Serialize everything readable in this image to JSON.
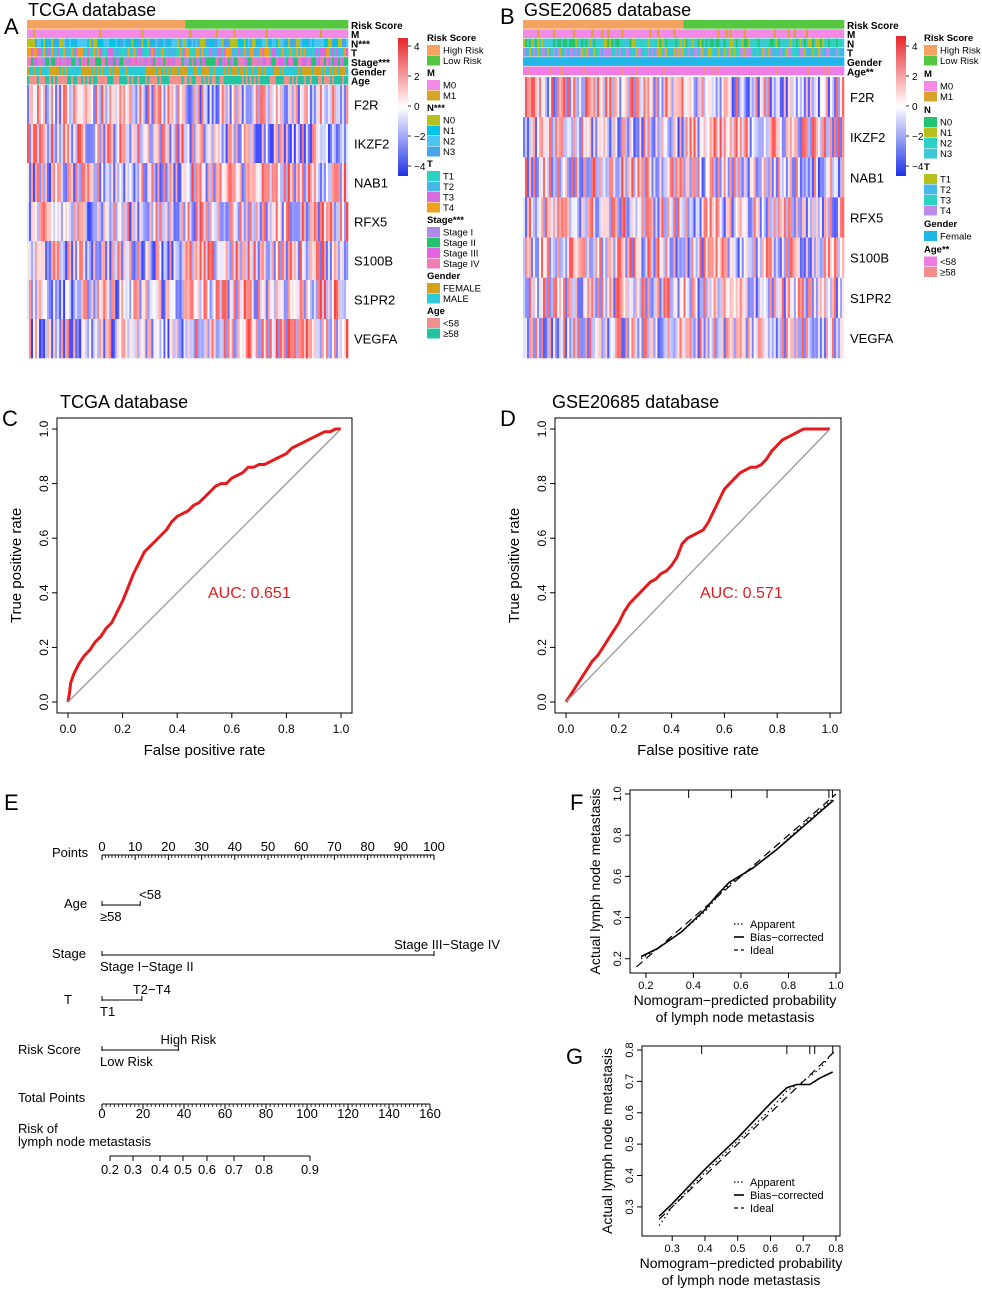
{
  "panels": {
    "A": {
      "letter": "A",
      "title": "TCGA database",
      "tracks": [
        "Risk Score",
        "M",
        "N***",
        "T",
        "Stage***",
        "Gender",
        "Age"
      ],
      "genes": [
        "F2R",
        "IKZF2",
        "NAB1",
        "RFX5",
        "S100B",
        "S1PR2",
        "VEGFA"
      ],
      "scale_ticks": [
        "4",
        "2",
        "0",
        "−2",
        "−4"
      ],
      "legend": [
        {
          "title": "Risk Score",
          "items": [
            {
              "label": "High Risk",
              "color": "#F4A261"
            },
            {
              "label": "Low Risk",
              "color": "#55C640"
            }
          ]
        },
        {
          "title": "M",
          "items": [
            {
              "label": "M0",
              "color": "#F28AE6"
            },
            {
              "label": "M1",
              "color": "#D7A32A"
            }
          ]
        },
        {
          "title": "N***",
          "items": [
            {
              "label": "N0",
              "color": "#B7BF1D"
            },
            {
              "label": "N1",
              "color": "#00C3E6"
            },
            {
              "label": "N2",
              "color": "#49C7F0"
            },
            {
              "label": "N3",
              "color": "#46A4E8"
            }
          ]
        },
        {
          "title": "T",
          "items": [
            {
              "label": "T1",
              "color": "#2CD3C4"
            },
            {
              "label": "T2",
              "color": "#45B8E8"
            },
            {
              "label": "T3",
              "color": "#D96BE0"
            },
            {
              "label": "T4",
              "color": "#F0A01E"
            }
          ]
        },
        {
          "title": "Stage***",
          "items": [
            {
              "label": "Stage I",
              "color": "#B18AE8"
            },
            {
              "label": "Stage II",
              "color": "#22C36E"
            },
            {
              "label": "Stage III",
              "color": "#E263E6"
            },
            {
              "label": "Stage IV",
              "color": "#F07CB6"
            }
          ]
        },
        {
          "title": "Gender",
          "items": [
            {
              "label": "FEMALE",
              "color": "#D4A21A"
            },
            {
              "label": "MALE",
              "color": "#2CC9D6"
            }
          ]
        },
        {
          "title": "Age",
          "items": [
            {
              "label": "<58",
              "color": "#F28F8C"
            },
            {
              "label": "≥58",
              "color": "#22C3A0"
            }
          ]
        }
      ]
    },
    "B": {
      "letter": "B",
      "title": "GSE20685 database",
      "tracks": [
        "Risk Score",
        "M",
        "N",
        "T",
        "Gender",
        "Age**"
      ],
      "genes": [
        "F2R",
        "IKZF2",
        "NAB1",
        "RFX5",
        "S100B",
        "S1PR2",
        "VEGFA"
      ],
      "scale_ticks": [
        "4",
        "2",
        "0",
        "−2",
        "−4"
      ],
      "legend": [
        {
          "title": "Risk Score",
          "items": [
            {
              "label": "High Risk",
              "color": "#F4A261"
            },
            {
              "label": "Low Risk",
              "color": "#55C640"
            }
          ]
        },
        {
          "title": "M",
          "items": [
            {
              "label": "M0",
              "color": "#F28AE6"
            },
            {
              "label": "M1",
              "color": "#D7A32A"
            }
          ]
        },
        {
          "title": "N",
          "items": [
            {
              "label": "N0",
              "color": "#22C36E"
            },
            {
              "label": "N1",
              "color": "#B7BF1D"
            },
            {
              "label": "N2",
              "color": "#2CD3C4"
            },
            {
              "label": "N3",
              "color": "#3CC8D8"
            }
          ]
        },
        {
          "title": "T",
          "items": [
            {
              "label": "T1",
              "color": "#B7BF1D"
            },
            {
              "label": "T2",
              "color": "#45B8E8"
            },
            {
              "label": "T3",
              "color": "#2CD3C4"
            },
            {
              "label": "T4",
              "color": "#C08AE8"
            }
          ]
        },
        {
          "title": "Gender",
          "items": [
            {
              "label": "Female",
              "color": "#22B6E8"
            }
          ]
        },
        {
          "title": "Age**",
          "items": [
            {
              "label": "<58",
              "color": "#F07CE6"
            },
            {
              "label": "≥58",
              "color": "#F28F8C"
            }
          ]
        }
      ]
    },
    "C": {
      "letter": "C",
      "title": "TCGA database",
      "auc_label": "AUC: 0.651"
    },
    "D": {
      "letter": "D",
      "title": "GSE20685 database",
      "auc_label": "AUC: 0.571"
    },
    "E": {
      "letter": "E"
    },
    "F": {
      "letter": "F"
    },
    "G": {
      "letter": "G"
    }
  },
  "chart_data": [
    {
      "type": "line",
      "panel": "C",
      "title": "TCGA database",
      "xlabel": "False positive rate",
      "ylabel": "True positive rate",
      "xlim": [
        0,
        1
      ],
      "ylim": [
        0,
        1
      ],
      "xticks": [
        "0.0",
        "0.2",
        "0.4",
        "0.6",
        "0.8",
        "1.0"
      ],
      "yticks": [
        "0.0",
        "0.2",
        "0.4",
        "0.6",
        "0.8",
        "1.0"
      ],
      "auc": 0.651,
      "series": [
        {
          "name": "ROC",
          "color": "#e41a1c",
          "x": [
            0,
            0.005,
            0.01,
            0.02,
            0.04,
            0.06,
            0.08,
            0.1,
            0.12,
            0.14,
            0.16,
            0.18,
            0.2,
            0.22,
            0.24,
            0.26,
            0.28,
            0.3,
            0.32,
            0.34,
            0.36,
            0.38,
            0.4,
            0.42,
            0.44,
            0.46,
            0.48,
            0.5,
            0.52,
            0.54,
            0.56,
            0.58,
            0.6,
            0.62,
            0.64,
            0.66,
            0.68,
            0.7,
            0.72,
            0.74,
            0.76,
            0.78,
            0.8,
            0.82,
            0.84,
            0.86,
            0.88,
            0.9,
            0.92,
            0.94,
            0.96,
            0.98,
            1.0
          ],
          "y": [
            0,
            0.03,
            0.07,
            0.1,
            0.14,
            0.17,
            0.19,
            0.22,
            0.24,
            0.27,
            0.29,
            0.33,
            0.37,
            0.42,
            0.47,
            0.51,
            0.55,
            0.57,
            0.59,
            0.61,
            0.63,
            0.66,
            0.68,
            0.69,
            0.7,
            0.72,
            0.73,
            0.75,
            0.77,
            0.79,
            0.8,
            0.8,
            0.82,
            0.83,
            0.84,
            0.86,
            0.86,
            0.87,
            0.87,
            0.88,
            0.89,
            0.9,
            0.91,
            0.93,
            0.94,
            0.95,
            0.96,
            0.97,
            0.98,
            0.99,
            0.99,
            1.0,
            1.0
          ]
        },
        {
          "name": "Reference",
          "color": "#999999",
          "x": [
            0,
            1
          ],
          "y": [
            0,
            1
          ]
        }
      ]
    },
    {
      "type": "line",
      "panel": "D",
      "title": "GSE20685 database",
      "xlabel": "False positive rate",
      "ylabel": "True positive rate",
      "xlim": [
        0,
        1
      ],
      "ylim": [
        0,
        1
      ],
      "xticks": [
        "0.0",
        "0.2",
        "0.4",
        "0.6",
        "0.8",
        "1.0"
      ],
      "yticks": [
        "0.0",
        "0.2",
        "0.4",
        "0.6",
        "0.8",
        "1.0"
      ],
      "auc": 0.571,
      "series": [
        {
          "name": "ROC",
          "color": "#e41a1c",
          "x": [
            0,
            0.02,
            0.04,
            0.06,
            0.08,
            0.1,
            0.12,
            0.14,
            0.16,
            0.18,
            0.2,
            0.22,
            0.24,
            0.26,
            0.28,
            0.3,
            0.32,
            0.34,
            0.36,
            0.38,
            0.4,
            0.42,
            0.44,
            0.46,
            0.48,
            0.5,
            0.52,
            0.54,
            0.56,
            0.58,
            0.6,
            0.62,
            0.64,
            0.66,
            0.68,
            0.7,
            0.72,
            0.74,
            0.76,
            0.78,
            0.8,
            0.82,
            0.84,
            0.86,
            0.88,
            0.9,
            0.92,
            0.94,
            0.96,
            0.98,
            1.0
          ],
          "y": [
            0,
            0.03,
            0.06,
            0.09,
            0.12,
            0.15,
            0.17,
            0.2,
            0.23,
            0.26,
            0.29,
            0.33,
            0.36,
            0.38,
            0.4,
            0.42,
            0.44,
            0.45,
            0.47,
            0.48,
            0.5,
            0.53,
            0.58,
            0.6,
            0.61,
            0.62,
            0.63,
            0.66,
            0.7,
            0.74,
            0.78,
            0.8,
            0.82,
            0.84,
            0.85,
            0.86,
            0.86,
            0.87,
            0.89,
            0.92,
            0.94,
            0.96,
            0.97,
            0.98,
            0.99,
            1.0,
            1.0,
            1.0,
            1.0,
            1.0,
            1.0
          ]
        },
        {
          "name": "Reference",
          "color": "#999999",
          "x": [
            0,
            1
          ],
          "y": [
            0,
            1
          ]
        }
      ]
    },
    {
      "type": "nomogram",
      "panel": "E",
      "rows": [
        {
          "name": "Points",
          "axis": true,
          "ticks": [
            "0",
            "10",
            "20",
            "30",
            "40",
            "50",
            "60",
            "70",
            "80",
            "90",
            "100"
          ]
        },
        {
          "name": "Age",
          "levels": [
            {
              "label": "<58",
              "points": 11.5,
              "side": "above"
            },
            {
              "label": "≥58",
              "points": 0,
              "side": "below"
            }
          ]
        },
        {
          "name": "Stage",
          "levels": [
            {
              "label": "Stage III−Stage IV",
              "points": 100,
              "side": "above"
            },
            {
              "label": "Stage I−Stage II",
              "points": 0,
              "side": "below"
            }
          ]
        },
        {
          "name": "T",
          "levels": [
            {
              "label": "T2−T4",
              "points": 12,
              "side": "above"
            },
            {
              "label": "T1",
              "points": 0,
              "side": "below"
            }
          ]
        },
        {
          "name": "Risk Score",
          "levels": [
            {
              "label": "High Risk",
              "points": 23,
              "side": "above"
            },
            {
              "label": "Low Risk",
              "points": 0,
              "side": "below"
            }
          ]
        },
        {
          "name": "Total Points",
          "axis": true,
          "ticks": [
            "0",
            "20",
            "40",
            "60",
            "80",
            "100",
            "120",
            "140",
            "160"
          ]
        },
        {
          "name": "Risk of\nlymph node metastasis",
          "axis": true,
          "ticks": [
            "0.2",
            "0.3",
            "0.4",
            "0.5",
            "0.6",
            "0.7",
            "0.8",
            "0.9"
          ]
        }
      ]
    },
    {
      "type": "line",
      "panel": "F",
      "xlabel": "Nomogram−predicted probability\nof lymph node metastasis",
      "ylabel": "Actual lymph node metastasis",
      "xlim": [
        0.15,
        1.0
      ],
      "ylim": [
        0.15,
        1.0
      ],
      "xticks": [
        "0.2",
        "0.4",
        "0.6",
        "0.8",
        "1.0"
      ],
      "yticks": [
        "0.2",
        "0.4",
        "0.6",
        "0.8",
        "1.0"
      ],
      "legend": [
        "Apparent",
        "Bias−corrected",
        "Ideal"
      ],
      "series": [
        {
          "name": "Apparent",
          "style": "dotted",
          "x": [
            0.18,
            0.25,
            0.35,
            0.45,
            0.5,
            0.55,
            0.65,
            0.75,
            0.85,
            0.95,
            0.99
          ],
          "y": [
            0.2,
            0.25,
            0.33,
            0.43,
            0.5,
            0.56,
            0.64,
            0.73,
            0.84,
            0.94,
            0.98
          ]
        },
        {
          "name": "Bias−corrected",
          "style": "solid",
          "x": [
            0.18,
            0.25,
            0.35,
            0.45,
            0.5,
            0.55,
            0.65,
            0.75,
            0.85,
            0.95,
            0.99
          ],
          "y": [
            0.21,
            0.25,
            0.33,
            0.44,
            0.51,
            0.57,
            0.64,
            0.73,
            0.83,
            0.93,
            0.97
          ]
        },
        {
          "name": "Ideal",
          "style": "dashed",
          "x": [
            0.16,
            1.0
          ],
          "y": [
            0.16,
            1.0
          ]
        }
      ]
    },
    {
      "type": "line",
      "panel": "G",
      "xlabel": "Nomogram−predicted probability\nof lymph node metastasis",
      "ylabel": "Actual lymph node metastasis",
      "xlim": [
        0.22,
        0.8
      ],
      "ylim": [
        0.22,
        0.8
      ],
      "xticks": [
        "0.3",
        "0.4",
        "0.5",
        "0.6",
        "0.7",
        "0.8"
      ],
      "yticks": [
        "0.3",
        "0.4",
        "0.5",
        "0.6",
        "0.7",
        "0.8"
      ],
      "legend": [
        "Apparent",
        "Bias−corrected",
        "Ideal"
      ],
      "series": [
        {
          "name": "Apparent",
          "style": "dotted",
          "x": [
            0.26,
            0.3,
            0.4,
            0.5,
            0.6,
            0.65,
            0.7,
            0.75,
            0.79
          ],
          "y": [
            0.24,
            0.3,
            0.41,
            0.51,
            0.61,
            0.67,
            0.7,
            0.74,
            0.79
          ]
        },
        {
          "name": "Bias−corrected",
          "style": "solid",
          "x": [
            0.26,
            0.3,
            0.4,
            0.5,
            0.6,
            0.65,
            0.68,
            0.72,
            0.75,
            0.79
          ],
          "y": [
            0.27,
            0.31,
            0.42,
            0.52,
            0.63,
            0.68,
            0.69,
            0.69,
            0.71,
            0.73
          ]
        },
        {
          "name": "Ideal",
          "style": "dashed",
          "x": [
            0.26,
            0.8
          ],
          "y": [
            0.26,
            0.8
          ]
        }
      ]
    }
  ]
}
